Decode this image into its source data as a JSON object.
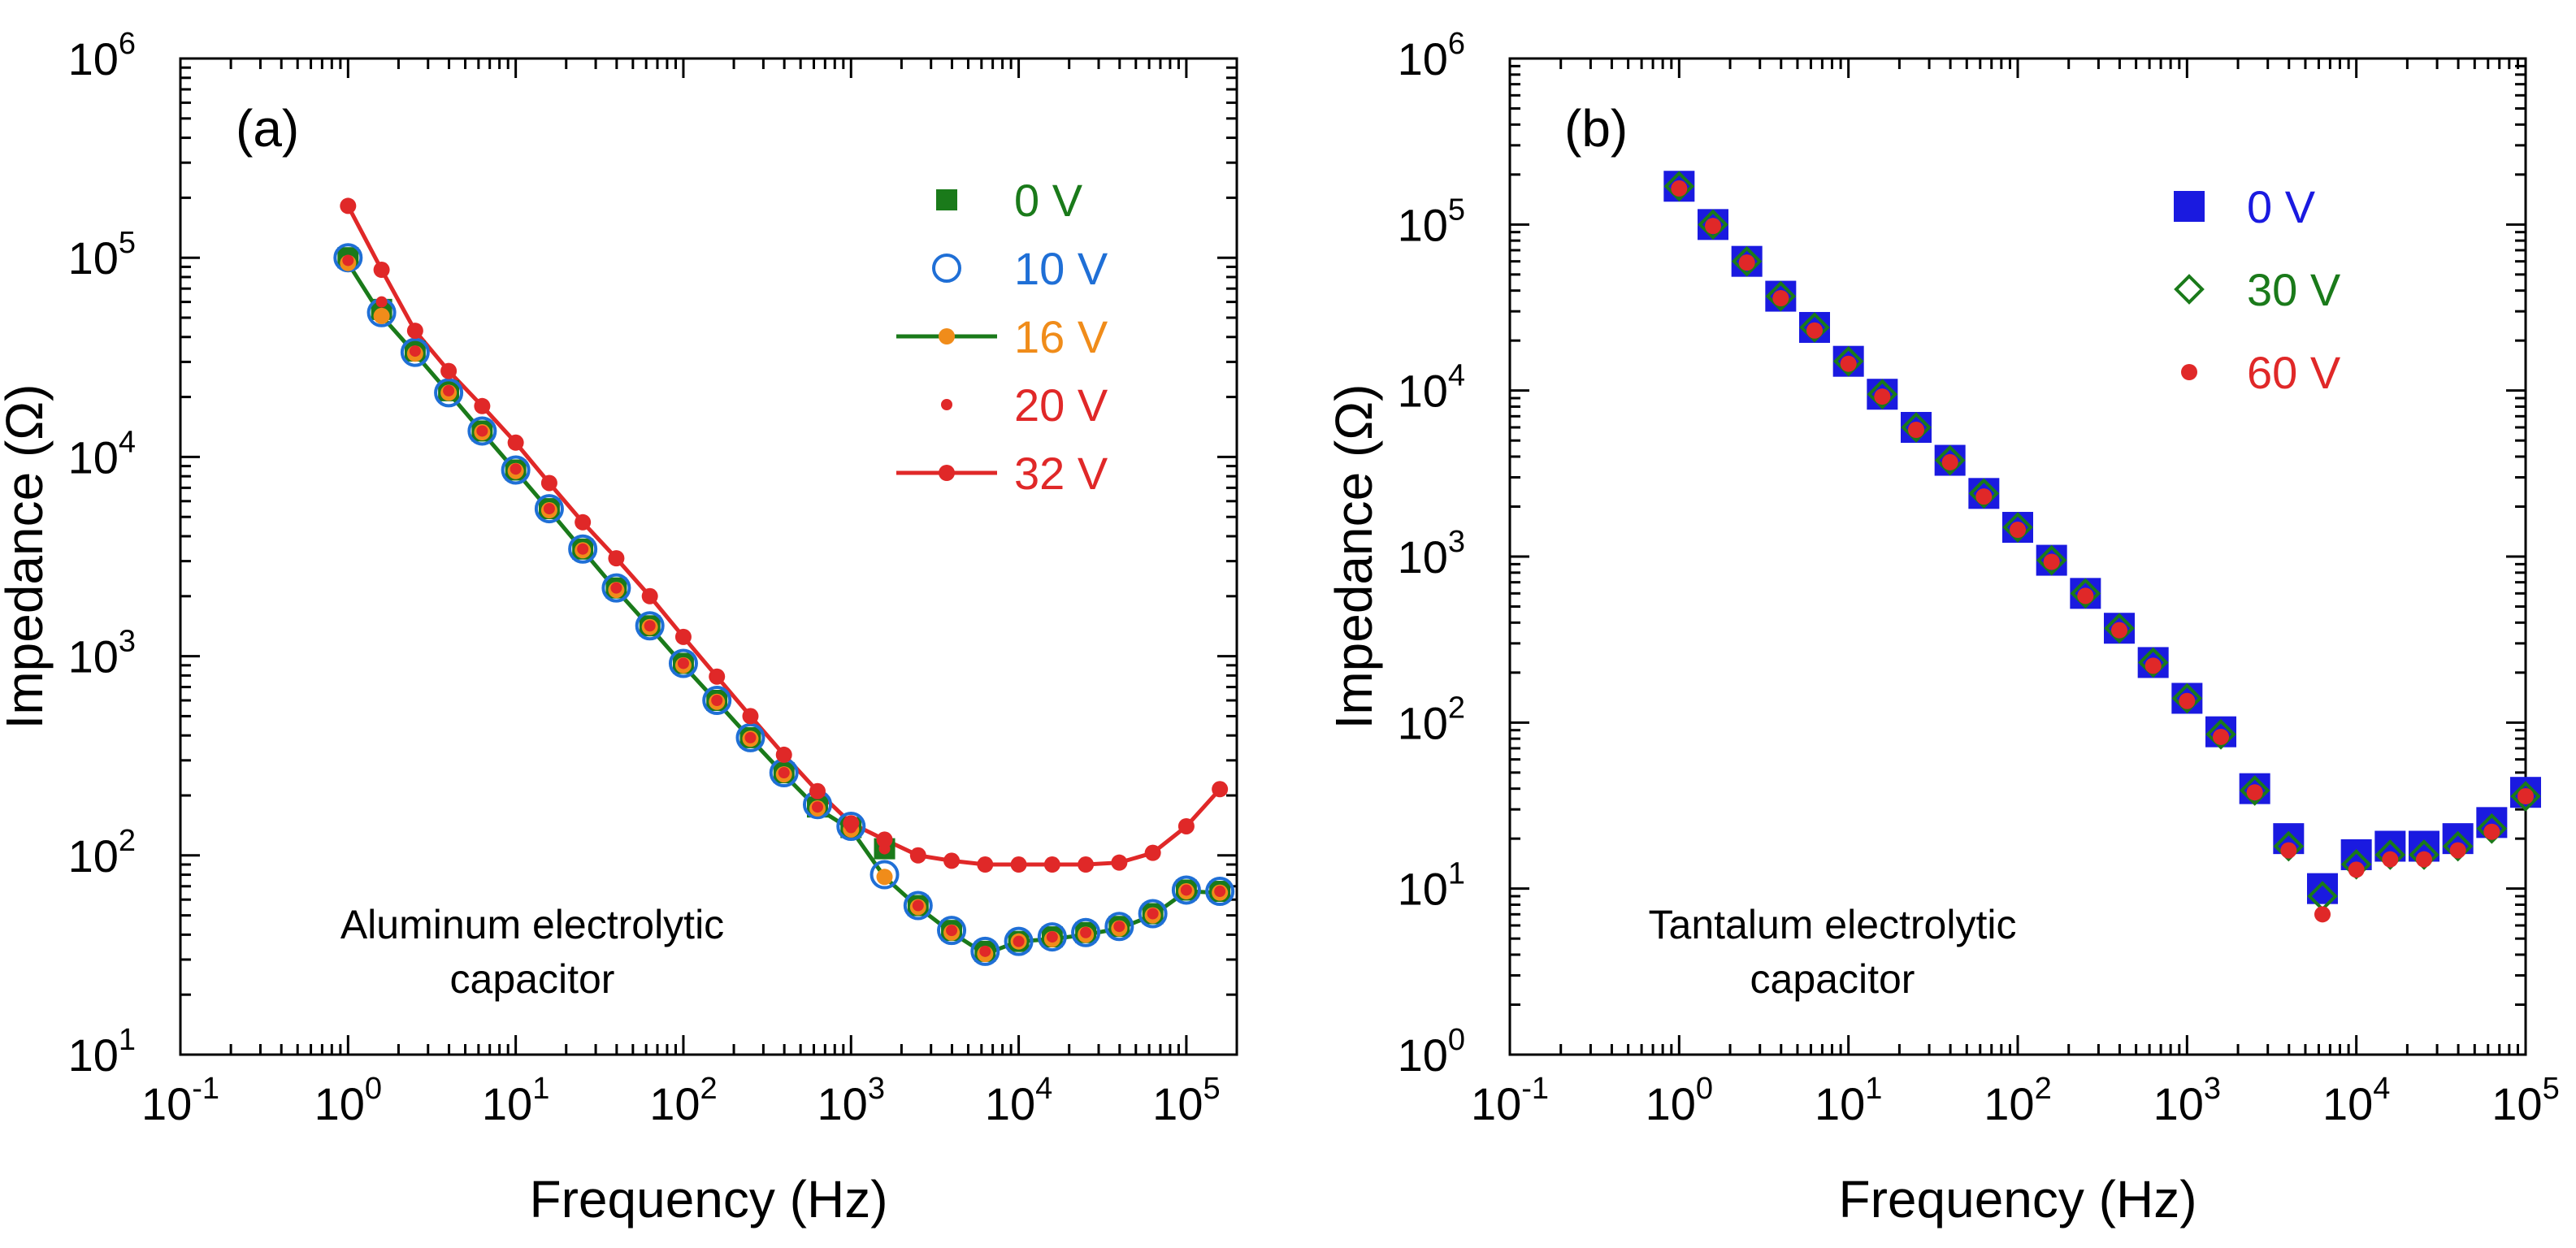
{
  "chart_data": [
    {
      "type": "scatter",
      "panel_label": "(a)",
      "annotation": [
        "Aluminum electrolytic",
        "capacitor"
      ],
      "xlabel": "Frequency (Hz)",
      "ylabel": "Impedance (Ω)",
      "xscale": "log",
      "yscale": "log",
      "xlim": [
        0.1,
        200000
      ],
      "ylim": [
        10,
        1000000
      ],
      "x_tick_labels": [
        {
          "base": "10",
          "exp": "-1"
        },
        {
          "base": "10",
          "exp": "0"
        },
        {
          "base": "10",
          "exp": "1"
        },
        {
          "base": "10",
          "exp": "2"
        },
        {
          "base": "10",
          "exp": "3"
        },
        {
          "base": "10",
          "exp": "4"
        },
        {
          "base": "10",
          "exp": "5"
        }
      ],
      "y_tick_labels": [
        {
          "base": "10",
          "exp": "1"
        },
        {
          "base": "10",
          "exp": "2"
        },
        {
          "base": "10",
          "exp": "3"
        },
        {
          "base": "10",
          "exp": "4"
        },
        {
          "base": "10",
          "exp": "5"
        },
        {
          "base": "10",
          "exp": "6"
        }
      ],
      "legend_position": "top-right",
      "x": [
        1,
        1.585,
        2.512,
        3.981,
        6.31,
        10,
        15.85,
        25.12,
        39.81,
        63.1,
        100,
        158.5,
        251.2,
        398.1,
        631,
        1000,
        1585,
        2512,
        3981,
        6310,
        10000,
        15850,
        25120,
        39810,
        63100,
        100000,
        158500
      ],
      "series": [
        {
          "name": "0 V",
          "color": "#1a7a1a",
          "marker": "filled-square",
          "line": false,
          "values": [
            100000,
            55000,
            34000,
            21500,
            13500,
            8600,
            5500,
            3450,
            2200,
            1420,
            920,
            600,
            390,
            260,
            175,
            138,
            108,
            56,
            42,
            33,
            37,
            39,
            41,
            44,
            51,
            67,
            66
          ]
        },
        {
          "name": "10 V",
          "color": "#1f6fd6",
          "marker": "open-circle",
          "line": false,
          "values": [
            100000,
            53000,
            33500,
            21000,
            13500,
            8600,
            5500,
            3450,
            2200,
            1420,
            920,
            600,
            390,
            260,
            180,
            140,
            80,
            56,
            42,
            33,
            37,
            39,
            41,
            44,
            51,
            67,
            66
          ]
        },
        {
          "name": "16 V",
          "color": "#f08c1a",
          "line_color": "#1a7a1a",
          "marker": "filled-circle",
          "line": true,
          "values": [
            94000,
            51000,
            33000,
            21000,
            13300,
            8500,
            5400,
            3400,
            2150,
            1400,
            900,
            590,
            385,
            255,
            172,
            135,
            78,
            55,
            41,
            32,
            37,
            38,
            40,
            43,
            50,
            66,
            65
          ]
        },
        {
          "name": "20 V",
          "color": "#e02828",
          "marker": "small-dot",
          "line": false,
          "values": [
            97000,
            60000,
            34000,
            21500,
            13500,
            8700,
            5500,
            3450,
            2200,
            1420,
            920,
            600,
            390,
            260,
            175,
            138,
            108,
            56,
            42,
            33,
            37,
            39,
            41,
            44,
            51,
            67,
            66
          ]
        },
        {
          "name": "32 V",
          "color": "#e02828",
          "marker": "filled-circle",
          "line": true,
          "values": [
            182000,
            87000,
            43000,
            27000,
            18000,
            11800,
            7400,
            4700,
            3100,
            2000,
            1250,
            790,
            500,
            320,
            210,
            145,
            120,
            100,
            94,
            90,
            90,
            90,
            90,
            92,
            103,
            140,
            215
          ]
        }
      ]
    },
    {
      "type": "scatter",
      "panel_label": "(b)",
      "annotation": [
        "Tantalum electrolytic",
        "capacitor"
      ],
      "xlabel": "Frequency (Hz)",
      "ylabel": "Impedance (Ω)",
      "xscale": "log",
      "yscale": "log",
      "xlim": [
        0.1,
        100000
      ],
      "ylim": [
        1,
        1000000
      ],
      "x_tick_labels": [
        {
          "base": "10",
          "exp": "-1"
        },
        {
          "base": "10",
          "exp": "0"
        },
        {
          "base": "10",
          "exp": "1"
        },
        {
          "base": "10",
          "exp": "2"
        },
        {
          "base": "10",
          "exp": "3"
        },
        {
          "base": "10",
          "exp": "4"
        },
        {
          "base": "10",
          "exp": "5"
        }
      ],
      "y_tick_labels": [
        {
          "base": "10",
          "exp": "0"
        },
        {
          "base": "10",
          "exp": "1"
        },
        {
          "base": "10",
          "exp": "2"
        },
        {
          "base": "10",
          "exp": "3"
        },
        {
          "base": "10",
          "exp": "4"
        },
        {
          "base": "10",
          "exp": "5"
        },
        {
          "base": "10",
          "exp": "6"
        }
      ],
      "legend_position": "top-right",
      "x": [
        1,
        1.585,
        2.512,
        3.981,
        6.31,
        10,
        15.85,
        25.12,
        39.81,
        63.1,
        100,
        158.5,
        251.2,
        398.1,
        631,
        1000,
        1585,
        2512,
        3981,
        6310,
        10000,
        15850,
        25120,
        39810,
        63100,
        100000
      ],
      "series": [
        {
          "name": "0 V",
          "color": "#1a1ae0",
          "marker": "filled-square-large",
          "line": false,
          "values": [
            170000,
            100000,
            60000,
            37000,
            24000,
            15000,
            9500,
            6000,
            3800,
            2400,
            1500,
            950,
            600,
            370,
            230,
            140,
            88,
            40,
            20,
            10,
            16,
            18,
            18,
            20,
            25,
            38
          ]
        },
        {
          "name": "30 V",
          "color": "#1a7a1a",
          "marker": "open-diamond",
          "line": false,
          "values": [
            170000,
            100000,
            60000,
            37000,
            24000,
            15000,
            9500,
            6000,
            3800,
            2400,
            1500,
            950,
            600,
            370,
            230,
            140,
            85,
            39,
            18,
            9,
            14,
            16,
            16,
            18,
            23,
            36
          ]
        },
        {
          "name": "60 V",
          "color": "#e02828",
          "marker": "filled-circle",
          "line": false,
          "values": [
            165000,
            98000,
            59000,
            36000,
            23000,
            14500,
            9200,
            5800,
            3700,
            2300,
            1450,
            930,
            580,
            360,
            220,
            135,
            82,
            38,
            17,
            7,
            13,
            15,
            15,
            17,
            22,
            36
          ]
        }
      ]
    }
  ]
}
